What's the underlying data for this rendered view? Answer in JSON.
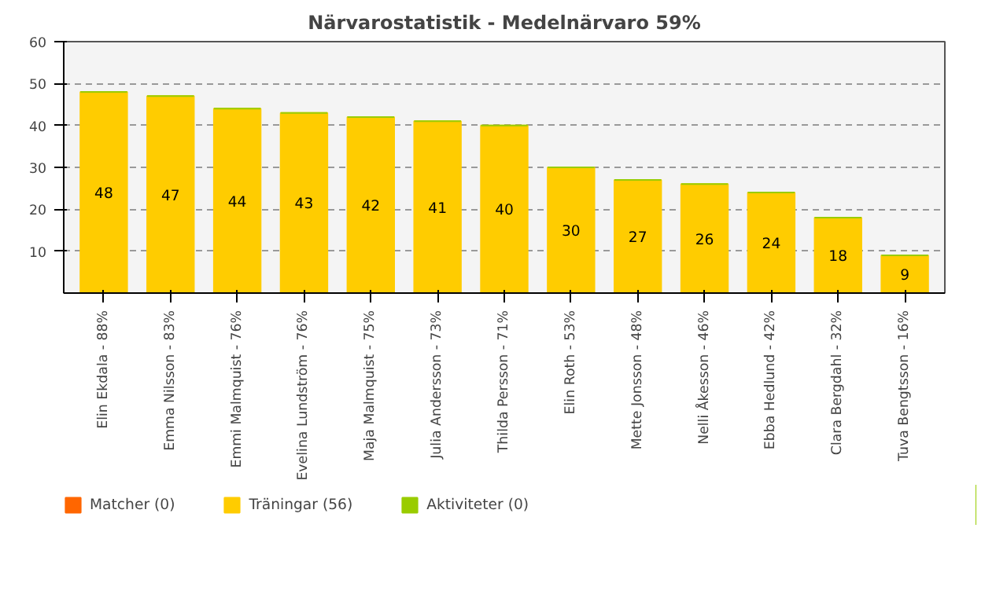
{
  "chart_data": {
    "type": "bar",
    "title": "Närvarostatistik - Medelnärvaro 59%",
    "stacked": true,
    "categories": [
      "Elin Ekdala - 88%",
      "Emma Nilsson - 83%",
      "Emmi Malmquist - 76%",
      "Evelina Lundström - 76%",
      "Maja Malmquist - 75%",
      "Julia Andersson - 73%",
      "Thilda Persson - 71%",
      "Elin Roth - 53%",
      "Mette Jonsson - 48%",
      "Nelli Åkesson - 46%",
      "Ebba Hedlund - 42%",
      "Clara Bergdahl - 32%",
      "Tuva Bengtsson - 16%"
    ],
    "series": [
      {
        "name": "Matcher (0)",
        "color": "#ff6600",
        "values": [
          0,
          0,
          0,
          0,
          0,
          0,
          0,
          0,
          0,
          0,
          0,
          0,
          0
        ]
      },
      {
        "name": "Träningar (56)",
        "color": "#ffcc00",
        "values": [
          48,
          47,
          44,
          43,
          42,
          41,
          40,
          30,
          27,
          26,
          24,
          18,
          9
        ],
        "value_labels": [
          "48",
          "47",
          "44",
          "43",
          "42",
          "41",
          "40",
          "30",
          "27",
          "26",
          "24",
          "18",
          "9"
        ]
      },
      {
        "name": "Aktiviteter (0)",
        "color": "#99cc00",
        "values": [
          0,
          0,
          0,
          0,
          0,
          0,
          0,
          0,
          0,
          0,
          0,
          0,
          0
        ]
      }
    ],
    "ylim": [
      0,
      60
    ],
    "yticks": [
      10,
      20,
      30,
      40,
      50,
      60
    ],
    "grid": "y",
    "legend": "bottom left"
  }
}
